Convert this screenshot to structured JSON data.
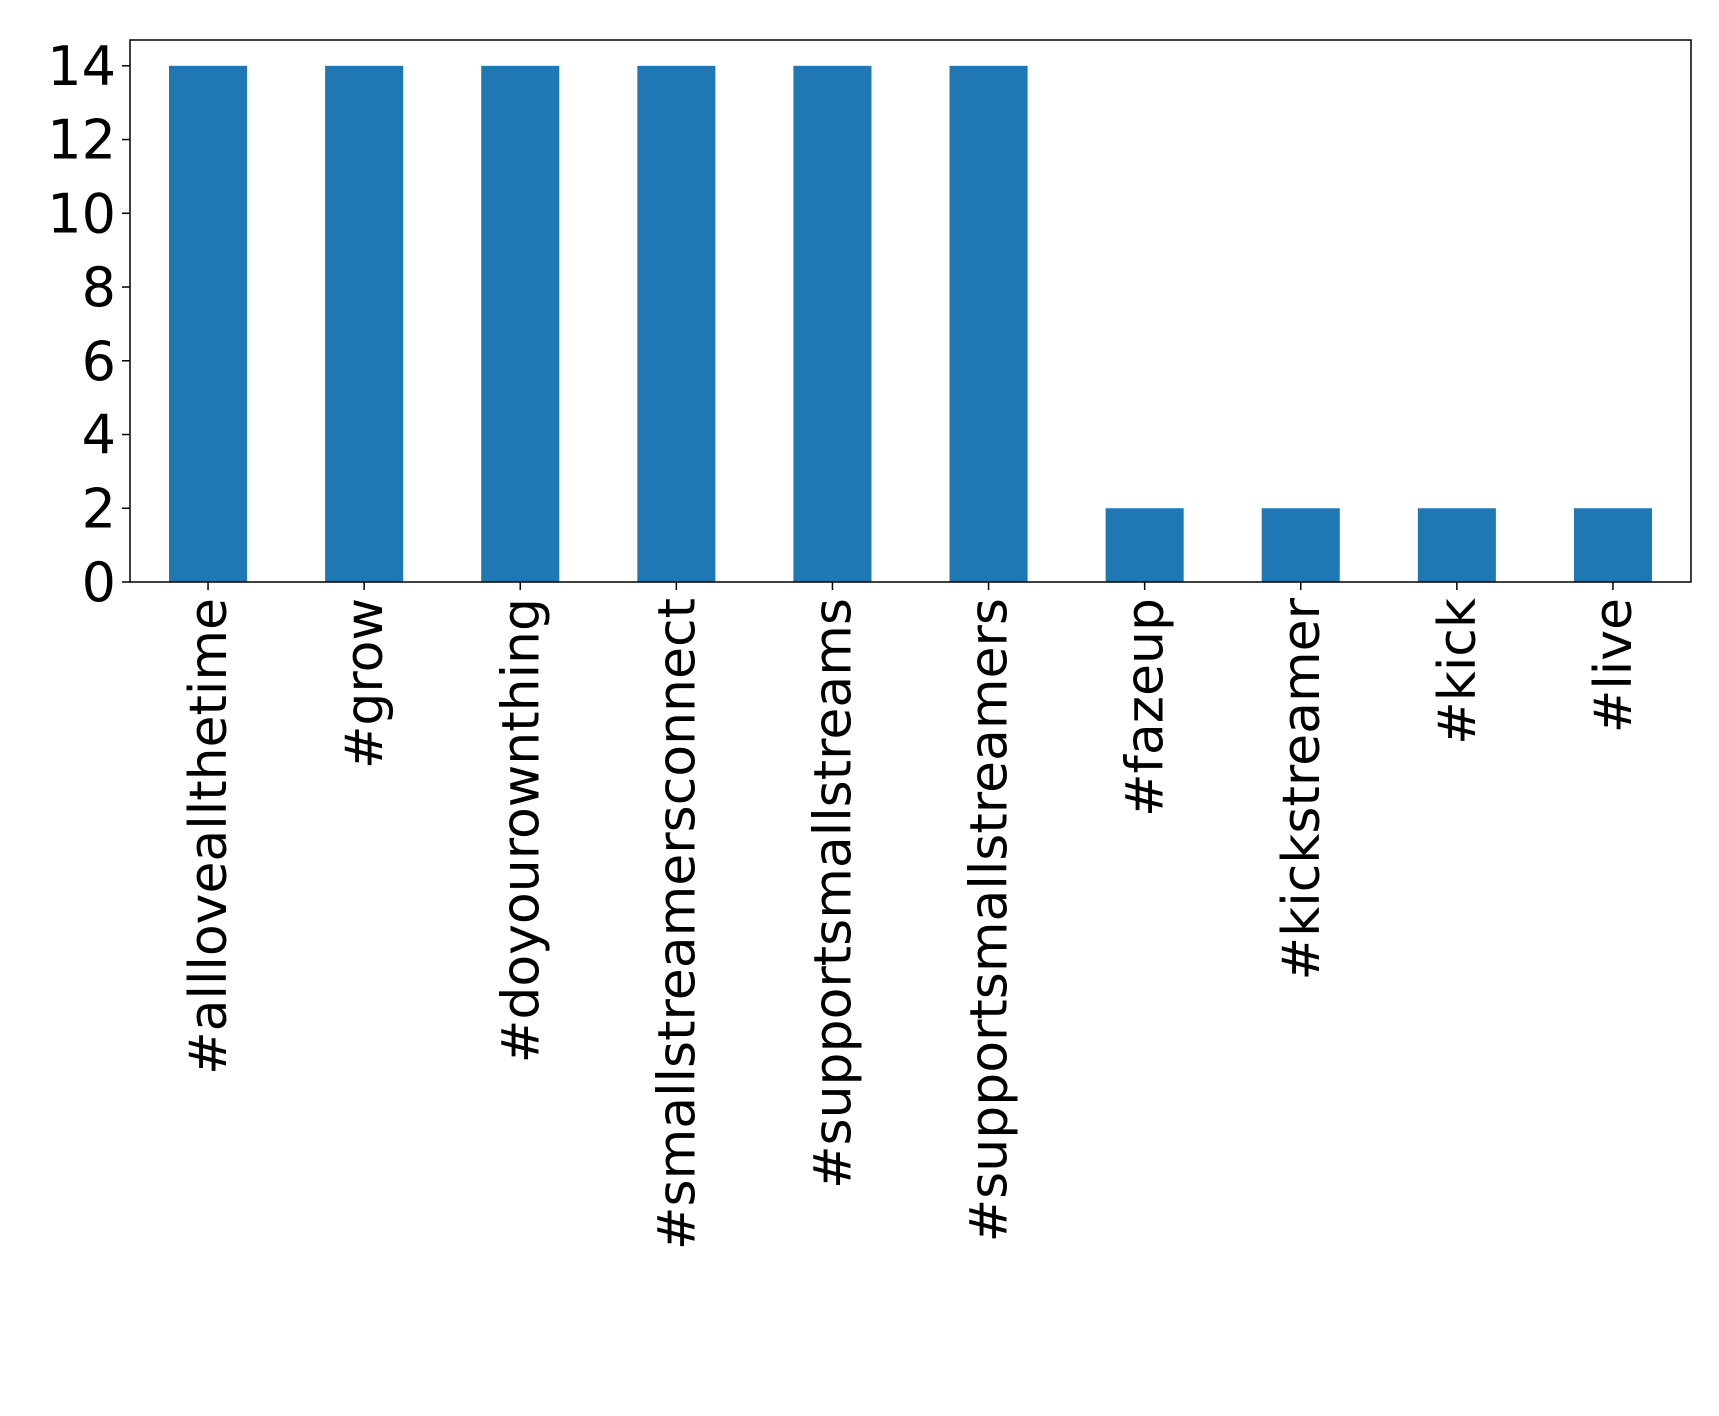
{
  "chart_data": {
    "type": "bar",
    "title": "",
    "xlabel": "",
    "ylabel": "",
    "categories": [
      "#allloveallthetime",
      "#grow",
      "#doyourownthing",
      "#smallstreamersconnect",
      "#supportsmallstreams",
      "#supportsmallstreamers",
      "#fazeup",
      "#kickstreamer",
      "#kick",
      "#live"
    ],
    "values": [
      14,
      14,
      14,
      14,
      14,
      14,
      2,
      2,
      2,
      2
    ],
    "ylim": [
      0,
      14.7
    ],
    "yticks": [
      0,
      2,
      4,
      6,
      8,
      10,
      12,
      14
    ],
    "bar_color": "#1f77b4",
    "grid": false,
    "legend": "none"
  }
}
